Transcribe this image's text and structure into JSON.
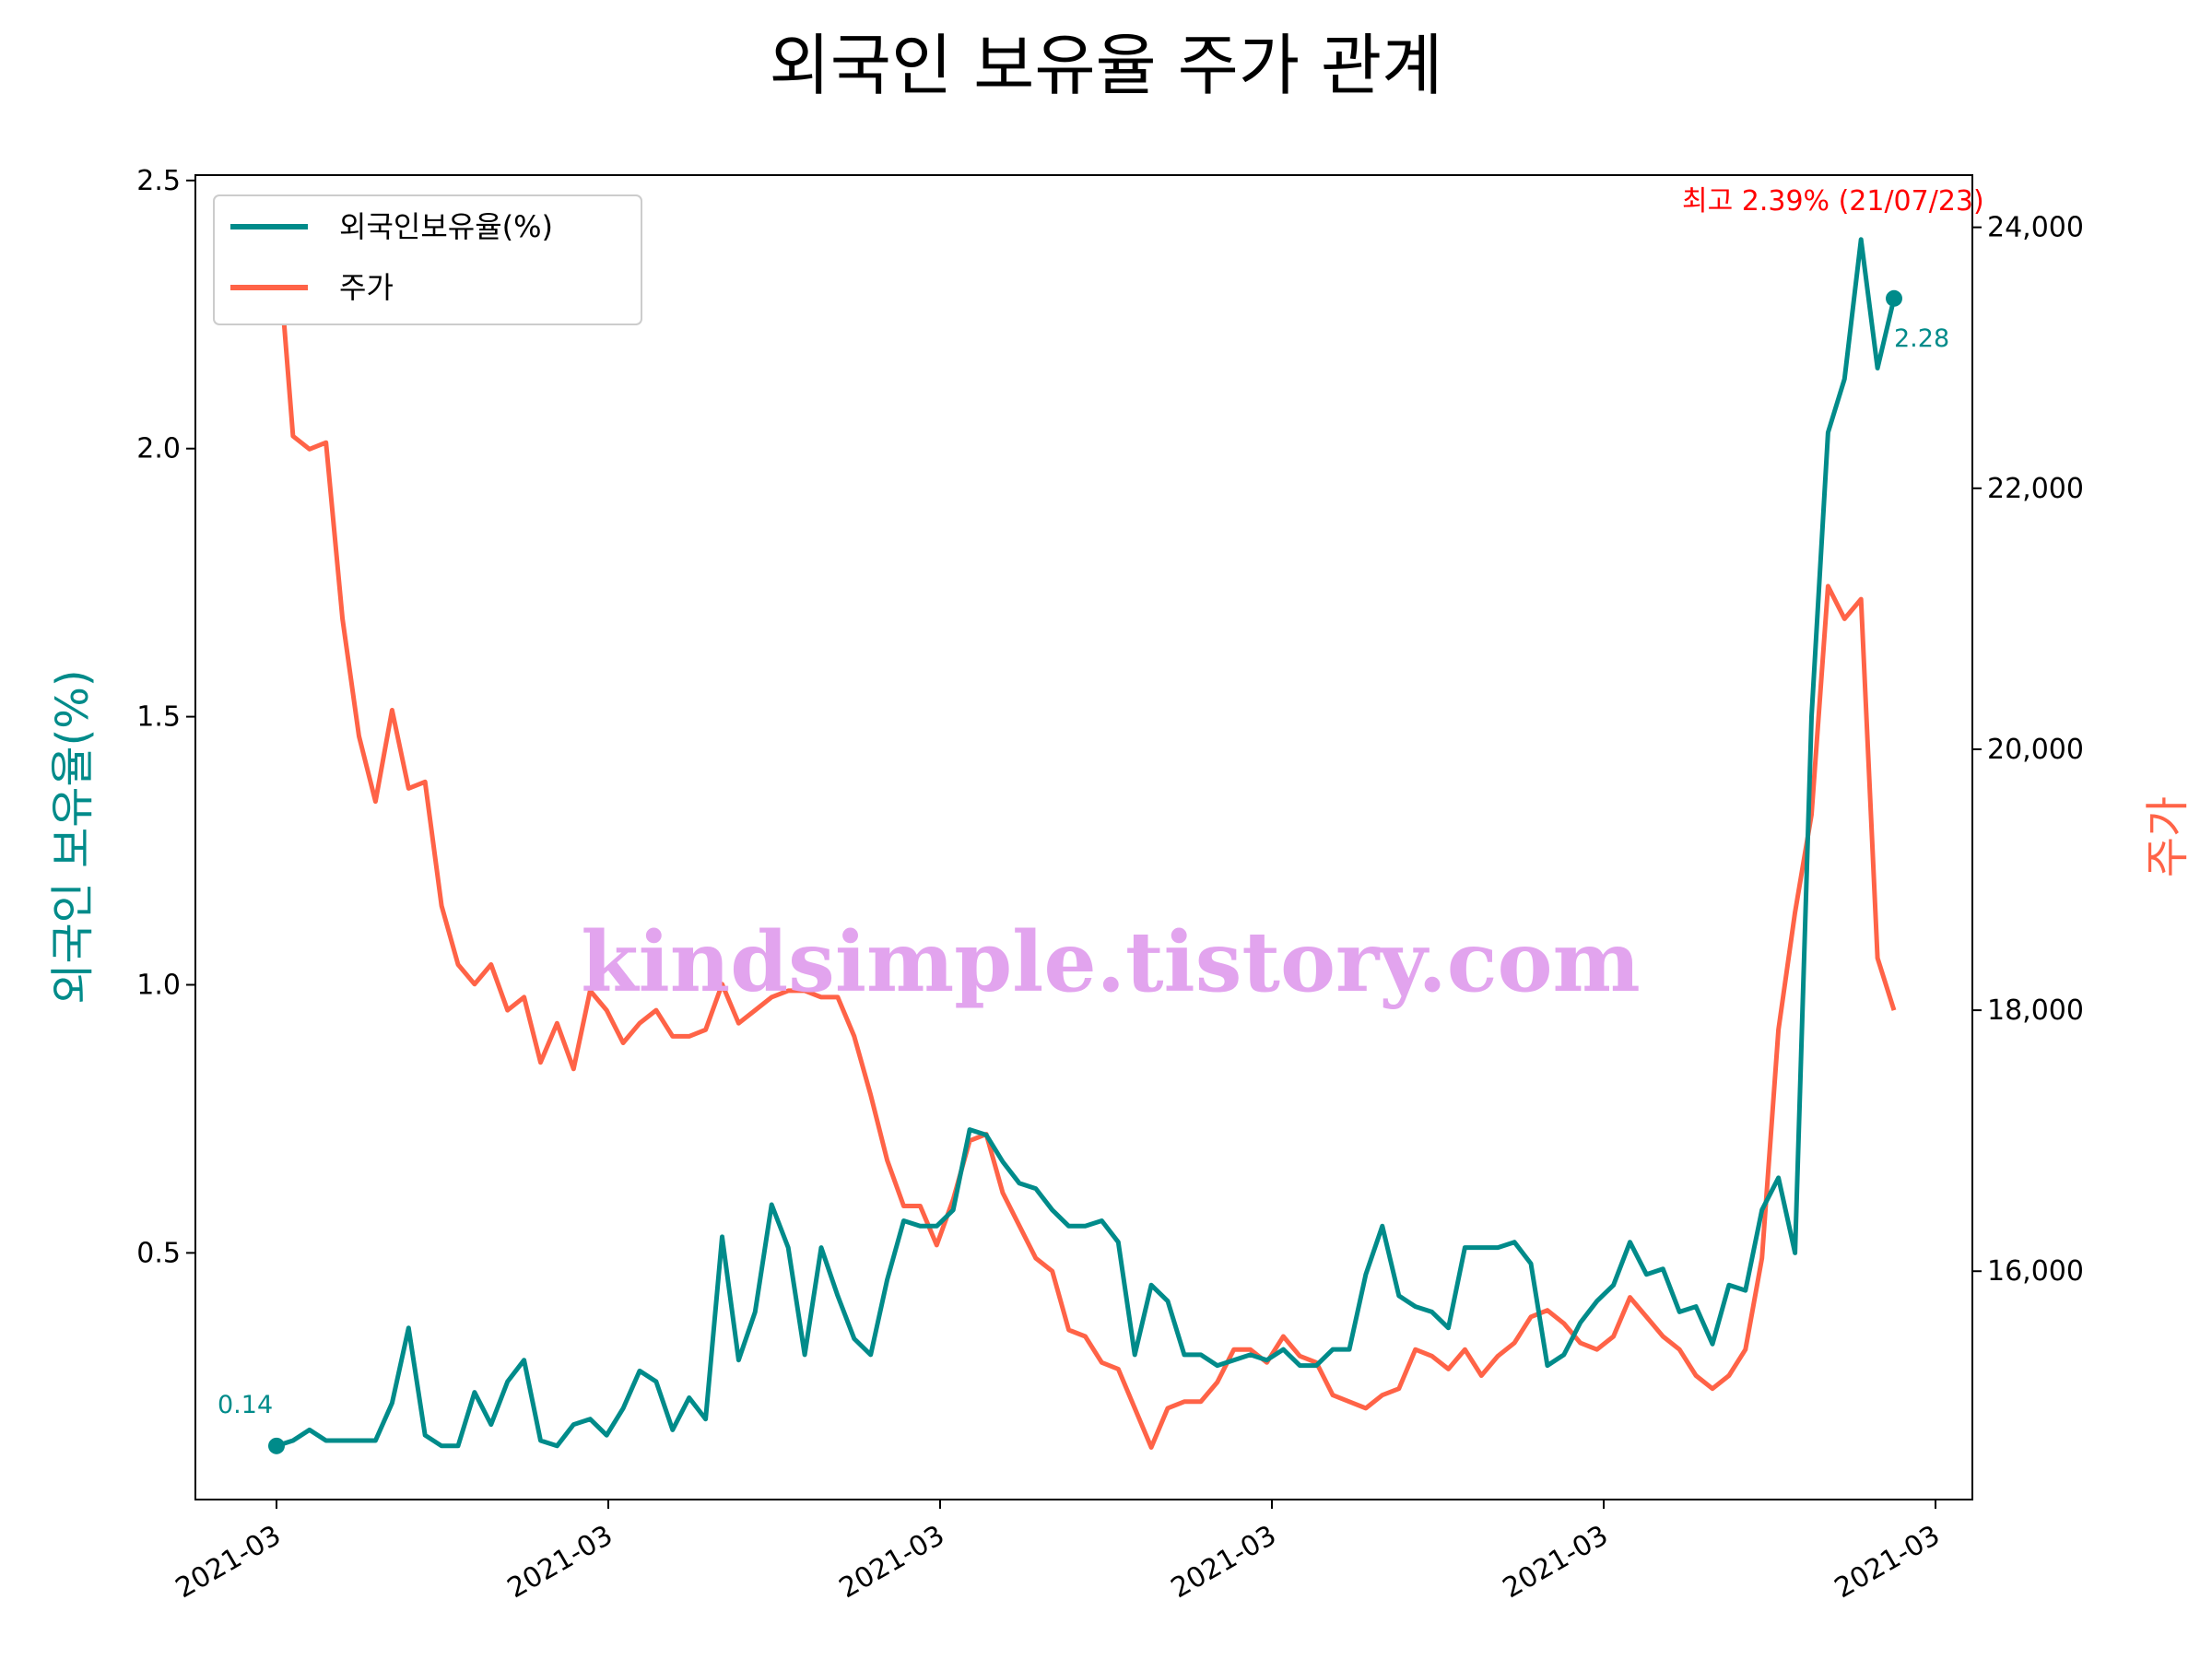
{
  "chart_data": {
    "type": "line",
    "title": "외국인 보유율 주가 관계",
    "ylabel_left": "외국인 보유율(%)",
    "ylabel_right": "주가",
    "xlabel": "",
    "x_tick_labels": [
      "2021-03",
      "2021-03",
      "2021-03",
      "2021-03",
      "2021-03",
      "2021-03"
    ],
    "y_left_ticks": [
      "0.5",
      "1.0",
      "1.5",
      "2.0",
      "2.5"
    ],
    "y_left_tick_values": [
      0.5,
      1.0,
      1.5,
      2.0,
      2.5
    ],
    "y_right_ticks": [
      "16,000",
      "18,000",
      "20,000",
      "22,000",
      "24,000"
    ],
    "y_right_tick_values": [
      16000,
      18000,
      20000,
      22000,
      24000
    ],
    "ylim_left": [
      0.04,
      2.51
    ],
    "ylim_right": [
      14250,
      24400
    ],
    "grid": false,
    "legend_position": "top-left",
    "legend": [
      {
        "name": "외국인보유율(%)",
        "color": "#008B8A"
      },
      {
        "name": "주가",
        "color": "#FF6347"
      }
    ],
    "annotations": {
      "max_label": "최고 2.39% (21/07/23)",
      "start_label": "0.14",
      "end_label": "2.28"
    },
    "watermark": "kindsimple.tistory.com",
    "colors": {
      "foreign": "#008B8A",
      "price": "#FF6347",
      "max": "#FF0000",
      "watermark": "#E2A4EE"
    },
    "series": [
      {
        "name": "외국인보유율(%)",
        "values": [
          0.14,
          0.15,
          0.17,
          0.15,
          0.15,
          0.15,
          0.15,
          0.22,
          0.36,
          0.16,
          0.14,
          0.14,
          0.24,
          0.18,
          0.26,
          0.3,
          0.15,
          0.14,
          0.18,
          0.19,
          0.16,
          0.21,
          0.28,
          0.26,
          0.17,
          0.23,
          0.19,
          0.53,
          0.3,
          0.39,
          0.59,
          0.51,
          0.31,
          0.51,
          0.42,
          0.34,
          0.31,
          0.45,
          0.56,
          0.55,
          0.55,
          0.58,
          0.73,
          0.72,
          0.67,
          0.63,
          0.62,
          0.58,
          0.55,
          0.55,
          0.56,
          0.52,
          0.31,
          0.44,
          0.41,
          0.31,
          0.31,
          0.29,
          0.3,
          0.31,
          0.3,
          0.32,
          0.29,
          0.29,
          0.32,
          0.32,
          0.46,
          0.55,
          0.42,
          0.4,
          0.39,
          0.36,
          0.51,
          0.51,
          0.51,
          0.52,
          0.48,
          0.29,
          0.31,
          0.37,
          0.41,
          0.44,
          0.52,
          0.46,
          0.47,
          0.39,
          0.4,
          0.33,
          0.44,
          0.43,
          0.58,
          0.64,
          0.5,
          1.5,
          2.03,
          2.13,
          2.39,
          2.15,
          2.28
        ]
      },
      {
        "name": "주가",
        "values": [
          24000,
          22400,
          22300,
          22350,
          21000,
          20100,
          19600,
          20300,
          19700,
          19750,
          18800,
          18350,
          18200,
          18350,
          18000,
          18100,
          17600,
          17900,
          17550,
          18150,
          18000,
          17750,
          17900,
          18000,
          17800,
          17800,
          17850,
          18200,
          17900,
          18000,
          18100,
          18150,
          18150,
          18100,
          18100,
          17800,
          17350,
          16850,
          16500,
          16500,
          16200,
          16550,
          17000,
          17050,
          16600,
          16350,
          16100,
          16000,
          15550,
          15500,
          15300,
          15250,
          14950,
          14650,
          14950,
          15000,
          15000,
          15150,
          15400,
          15400,
          15300,
          15500,
          15350,
          15300,
          15050,
          15000,
          14950,
          15050,
          15100,
          15400,
          15350,
          15250,
          15400,
          15200,
          15350,
          15450,
          15650,
          15700,
          15600,
          15450,
          15400,
          15500,
          15800,
          15650,
          15500,
          15400,
          15200,
          15100,
          15200,
          15400,
          16100,
          17850,
          18750,
          19500,
          21250,
          21000,
          21150,
          18400,
          18000
        ]
      }
    ]
  }
}
